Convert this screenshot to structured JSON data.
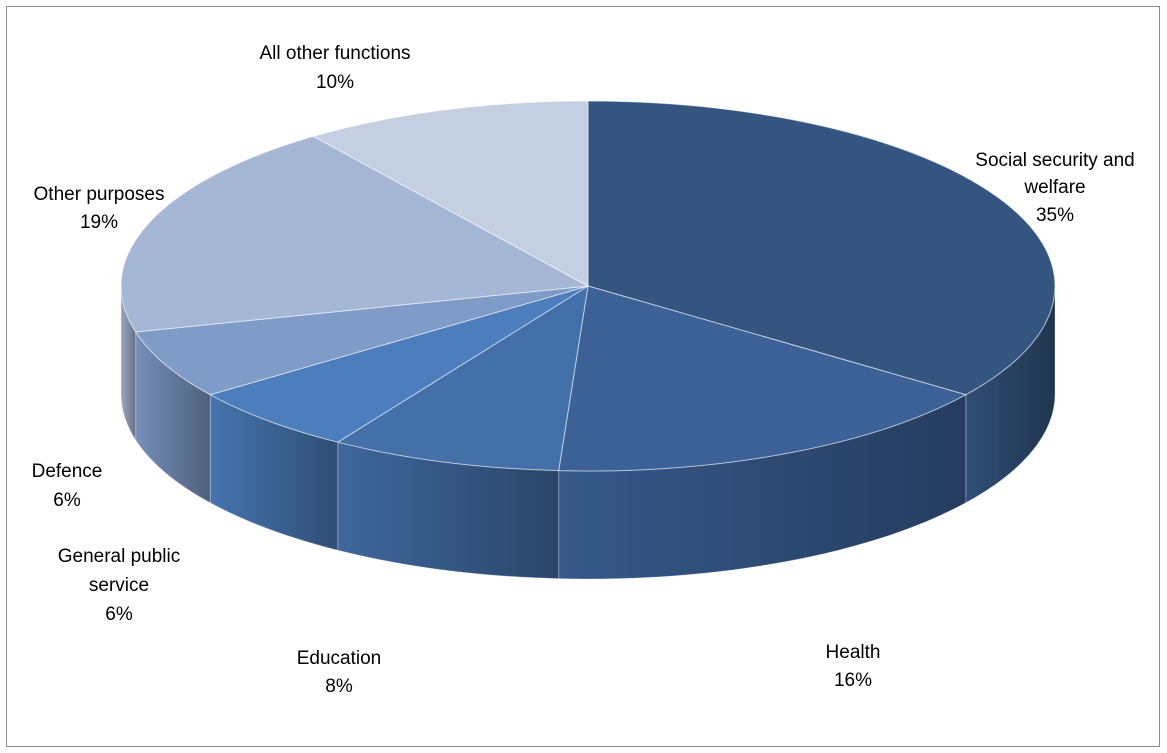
{
  "chart_data": {
    "type": "pie",
    "title": "",
    "style": "3d",
    "legend": "none",
    "slices": [
      {
        "label": "Social security and welfare",
        "value": 35,
        "value_label": "35%",
        "color": "#34557f"
      },
      {
        "label": "Health",
        "value": 16,
        "value_label": "16%",
        "color": "#3b6197"
      },
      {
        "label": "Education",
        "value": 8,
        "value_label": "8%",
        "color": "#4470aa"
      },
      {
        "label": "General public service",
        "value": 6,
        "value_label": "6%",
        "color": "#4c7ebd"
      },
      {
        "label": "Defence",
        "value": 6,
        "value_label": "6%",
        "color": "#7f9bc8"
      },
      {
        "label": "Other purposes",
        "value": 19,
        "value_label": "19%",
        "color": "#a6b7d5"
      },
      {
        "label": "All other functions",
        "value": 10,
        "value_label": "10%",
        "color": "#c5cfe2"
      }
    ]
  }
}
